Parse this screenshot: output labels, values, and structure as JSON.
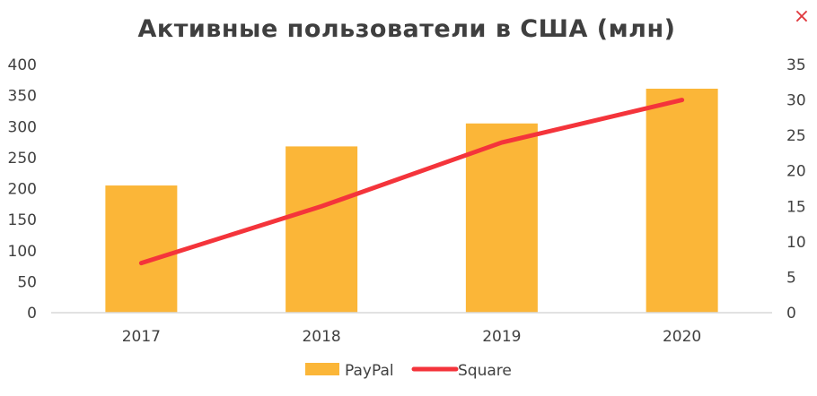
{
  "close_icon": "close-icon",
  "close_glyph": "×",
  "colors": {
    "bar": "#fbb638",
    "line": "#f4343b",
    "axis": "#d9d9d9",
    "text": "#404040",
    "close": "#e0393e"
  },
  "chart_data": {
    "type": "bar",
    "title": "Активные пользователи в США (млн)",
    "categories": [
      "2017",
      "2018",
      "2019",
      "2020"
    ],
    "series": [
      {
        "name": "PayPal",
        "type": "bar",
        "axis": "left",
        "values": [
          205,
          268,
          305,
          361
        ]
      },
      {
        "name": "Square",
        "type": "line",
        "axis": "right",
        "values": [
          7,
          15,
          24,
          30
        ]
      }
    ],
    "y_left": {
      "min": 0,
      "max": 400,
      "step": 50,
      "ticks": [
        "0",
        "50",
        "100",
        "150",
        "200",
        "250",
        "300",
        "350",
        "400"
      ]
    },
    "y_right": {
      "min": 0,
      "max": 35,
      "step": 5,
      "ticks": [
        "0",
        "5",
        "10",
        "15",
        "20",
        "25",
        "30",
        "35"
      ]
    },
    "grid": false,
    "legend_position": "bottom"
  }
}
